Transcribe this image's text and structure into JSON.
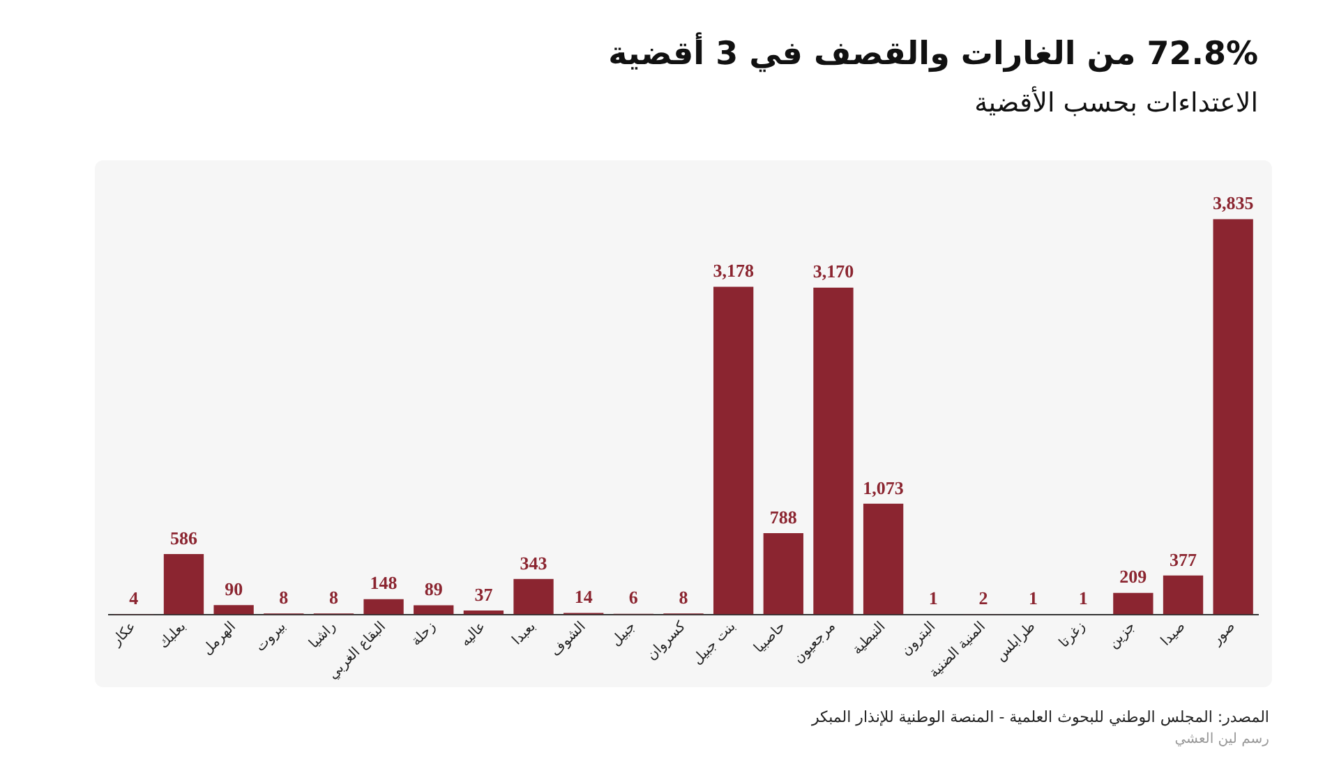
{
  "chart_data": {
    "type": "bar",
    "title": "72.8% من الغارات والقصف في 3 أقضية",
    "subtitle": "الاعتداءات بحسب الأقضية",
    "categories": [
      "عكار",
      "بعلبك",
      "الهرمل",
      "بيروت",
      "راشيا",
      "البقاع الغربي",
      "زحلة",
      "عاليه",
      "بعبدا",
      "الشوف",
      "جبيل",
      "كسروان",
      "بنت جبيل",
      "حاصبيا",
      "مرجعيون",
      "النبطية",
      "البترون",
      "المنية الضنية",
      "طرابلس",
      "زغرتا",
      "جزين",
      "صيدا",
      "صور"
    ],
    "values": [
      4,
      586,
      90,
      8,
      8,
      148,
      89,
      37,
      343,
      14,
      6,
      8,
      3178,
      788,
      3170,
      1073,
      1,
      2,
      1,
      1,
      209,
      377,
      3835
    ],
    "value_labels": [
      "4",
      "586",
      "90",
      "8",
      "8",
      "148",
      "89",
      "37",
      "343",
      "14",
      "6",
      "8",
      "3,178",
      "788",
      "3,170",
      "1,073",
      "1",
      "2",
      "1",
      "1",
      "209",
      "377",
      "3,835"
    ],
    "color": "#8b2530",
    "grid": false,
    "legend": false,
    "annotations": [
      "المصدر: المجلس الوطني للبحوث العلمية - المنصة الوطنية للإنذار المبكر",
      "رسم لين العشي"
    ]
  }
}
